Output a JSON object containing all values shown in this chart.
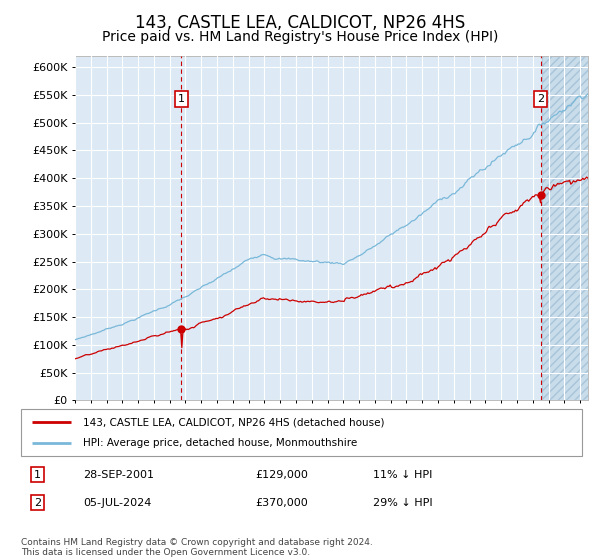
{
  "title": "143, CASTLE LEA, CALDICOT, NP26 4HS",
  "subtitle": "Price paid vs. HM Land Registry's House Price Index (HPI)",
  "title_fontsize": 12,
  "subtitle_fontsize": 10,
  "ylim": [
    0,
    620000
  ],
  "yticks": [
    0,
    50000,
    100000,
    150000,
    200000,
    250000,
    300000,
    350000,
    400000,
    450000,
    500000,
    550000,
    600000
  ],
  "ytick_labels": [
    "£0",
    "£50K",
    "£100K",
    "£150K",
    "£200K",
    "£250K",
    "£300K",
    "£350K",
    "£400K",
    "£450K",
    "£500K",
    "£550K",
    "£600K"
  ],
  "xlim_start": 1995.0,
  "xlim_end": 2027.5,
  "x_future_start": 2024.58,
  "hpi_color": "#7ab8d9",
  "price_color": "#cc0000",
  "bg_color": "#ddeaf5",
  "grid_color": "#ffffff",
  "marker1_x": 2001.74,
  "marker1_price": 129000,
  "marker2_x": 2024.51,
  "marker2_price": 370000,
  "legend_label1": "143, CASTLE LEA, CALDICOT, NP26 4HS (detached house)",
  "legend_label2": "HPI: Average price, detached house, Monmouthshire",
  "footer_text": "Contains HM Land Registry data © Crown copyright and database right 2024.\nThis data is licensed under the Open Government Licence v3.0.",
  "table_row1": [
    "1",
    "28-SEP-2001",
    "£129,000",
    "11% ↓ HPI"
  ],
  "table_row2": [
    "2",
    "05-JUL-2024",
    "£370,000",
    "29% ↓ HPI"
  ]
}
